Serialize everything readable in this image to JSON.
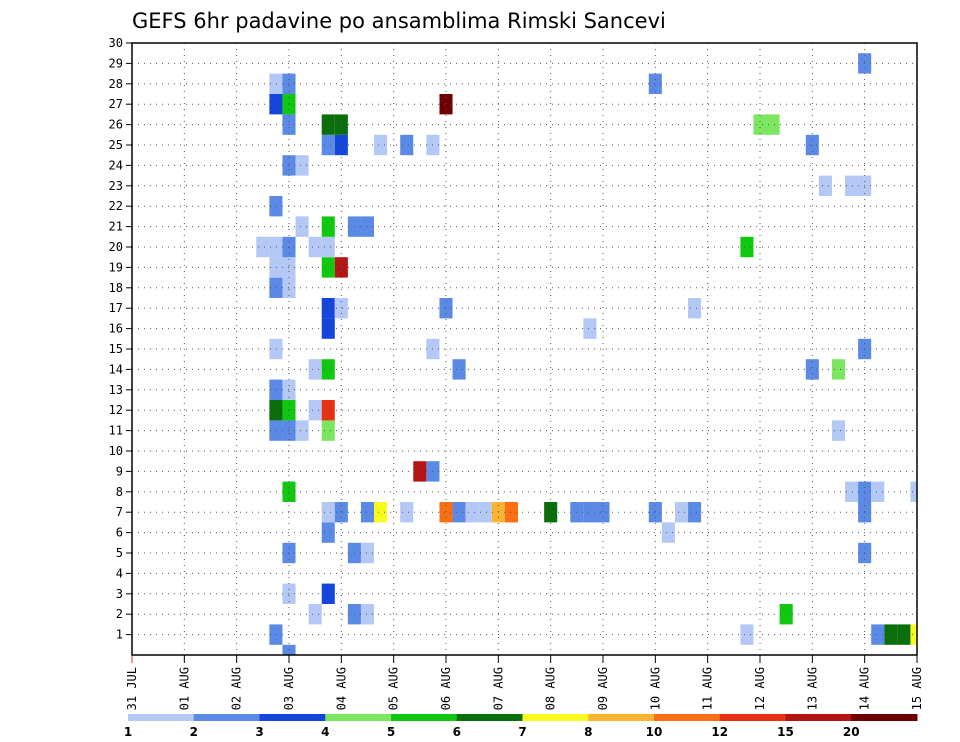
{
  "chart_data": {
    "type": "heatmap",
    "title": "GEFS 6hr padavine po ansamblima Rimski Sancevi",
    "xlabel": "",
    "ylabel": "",
    "x_ticks": [
      "31 JUL",
      "01 AUG",
      "02 AUG",
      "03 AUG",
      "04 AUG",
      "05 AUG",
      "06 AUG",
      "07 AUG",
      "08 AUG",
      "09 AUG",
      "10 AUG",
      "11 AUG",
      "12 AUG",
      "13 AUG",
      "14 AUG",
      "15 AUG"
    ],
    "y_ticks": [
      "1",
      "2",
      "3",
      "4",
      "5",
      "6",
      "7",
      "8",
      "9",
      "10",
      "11",
      "12",
      "13",
      "14",
      "15",
      "16",
      "17",
      "18",
      "19",
      "20",
      "21",
      "22",
      "23",
      "24",
      "25",
      "26",
      "27",
      "28",
      "29",
      "30"
    ],
    "xlim": [
      0,
      60
    ],
    "ylim": [
      0,
      30
    ],
    "grid": true,
    "legend_position": "bottom",
    "legend_labels": [
      "1",
      "2",
      "3",
      "4",
      "5",
      "6",
      "7",
      "8",
      "10",
      "12",
      "15",
      "20"
    ],
    "legend_colors": [
      "#b4c8f5",
      "#5a8ae6",
      "#1446dc",
      "#7ce660",
      "#10c810",
      "#0a6e0a",
      "#fafa1e",
      "#fab432",
      "#fa6e14",
      "#e63214",
      "#b41414",
      "#6e0000"
    ],
    "cell_units": "6-hour step from 31 JUL 00Z; member 0 drawn below row 1",
    "cells": [
      [
        12,
        0,
        1
      ],
      [
        11,
        1,
        1
      ],
      [
        57,
        1,
        1
      ],
      [
        58,
        1,
        5
      ],
      [
        59,
        1,
        5
      ],
      [
        60,
        1,
        6
      ],
      [
        61,
        1,
        3
      ],
      [
        47,
        1,
        0
      ],
      [
        14,
        2,
        0
      ],
      [
        17,
        2,
        1
      ],
      [
        18,
        2,
        0
      ],
      [
        50,
        2,
        4
      ],
      [
        12,
        3,
        0
      ],
      [
        15,
        3,
        2
      ],
      [
        12,
        5,
        1
      ],
      [
        17,
        5,
        1
      ],
      [
        18,
        5,
        0
      ],
      [
        56,
        5,
        1
      ],
      [
        15,
        6,
        1
      ],
      [
        41,
        6,
        0
      ],
      [
        15,
        7,
        0
      ],
      [
        16,
        7,
        1
      ],
      [
        18,
        7,
        1
      ],
      [
        19,
        7,
        6
      ],
      [
        21,
        7,
        0
      ],
      [
        24,
        7,
        8
      ],
      [
        25,
        7,
        1
      ],
      [
        26,
        7,
        0
      ],
      [
        27,
        7,
        0
      ],
      [
        28,
        7,
        7
      ],
      [
        29,
        7,
        8
      ],
      [
        32,
        7,
        5
      ],
      [
        34,
        7,
        1
      ],
      [
        35,
        7,
        1
      ],
      [
        36,
        7,
        1
      ],
      [
        40,
        7,
        1
      ],
      [
        42,
        7,
        0
      ],
      [
        43,
        7,
        1
      ],
      [
        56,
        7,
        1
      ],
      [
        12,
        8,
        4
      ],
      [
        55,
        8,
        0
      ],
      [
        56,
        8,
        1
      ],
      [
        57,
        8,
        0
      ],
      [
        60,
        8,
        0
      ],
      [
        22,
        9,
        10
      ],
      [
        23,
        9,
        1
      ],
      [
        11,
        11,
        1
      ],
      [
        12,
        11,
        1
      ],
      [
        13,
        11,
        0
      ],
      [
        15,
        11,
        3
      ],
      [
        54,
        11,
        0
      ],
      [
        11,
        12,
        5
      ],
      [
        12,
        12,
        4
      ],
      [
        14,
        12,
        0
      ],
      [
        15,
        12,
        9
      ],
      [
        11,
        13,
        1
      ],
      [
        12,
        13,
        0
      ],
      [
        14,
        14,
        0
      ],
      [
        15,
        14,
        4
      ],
      [
        25,
        14,
        1
      ],
      [
        52,
        14,
        1
      ],
      [
        54,
        14,
        3
      ],
      [
        11,
        15,
        0
      ],
      [
        23,
        15,
        0
      ],
      [
        56,
        15,
        1
      ],
      [
        35,
        16,
        0
      ],
      [
        15,
        16,
        2
      ],
      [
        15,
        17,
        2
      ],
      [
        16,
        17,
        0
      ],
      [
        24,
        17,
        1
      ],
      [
        43,
        17,
        0
      ],
      [
        11,
        18,
        1
      ],
      [
        12,
        18,
        0
      ],
      [
        11,
        19,
        0
      ],
      [
        12,
        19,
        0
      ],
      [
        15,
        19,
        4
      ],
      [
        16,
        19,
        10
      ],
      [
        10,
        20,
        0
      ],
      [
        11,
        20,
        0
      ],
      [
        12,
        20,
        1
      ],
      [
        14,
        20,
        0
      ],
      [
        15,
        20,
        0
      ],
      [
        47,
        20,
        4
      ],
      [
        13,
        21,
        0
      ],
      [
        15,
        21,
        4
      ],
      [
        17,
        21,
        1
      ],
      [
        18,
        21,
        1
      ],
      [
        11,
        22,
        1
      ],
      [
        53,
        23,
        0
      ],
      [
        55,
        23,
        0
      ],
      [
        56,
        23,
        0
      ],
      [
        12,
        24,
        1
      ],
      [
        13,
        24,
        0
      ],
      [
        15,
        25,
        1
      ],
      [
        16,
        25,
        2
      ],
      [
        19,
        25,
        0
      ],
      [
        21,
        25,
        1
      ],
      [
        23,
        25,
        0
      ],
      [
        52,
        25,
        1
      ],
      [
        12,
        26,
        1
      ],
      [
        15,
        26,
        5
      ],
      [
        16,
        26,
        5
      ],
      [
        48,
        26,
        3
      ],
      [
        49,
        26,
        3
      ],
      [
        11,
        27,
        2
      ],
      [
        12,
        27,
        4
      ],
      [
        24,
        27,
        11
      ],
      [
        11,
        28,
        0
      ],
      [
        12,
        28,
        1
      ],
      [
        40,
        28,
        1
      ],
      [
        56,
        29,
        1
      ]
    ]
  }
}
